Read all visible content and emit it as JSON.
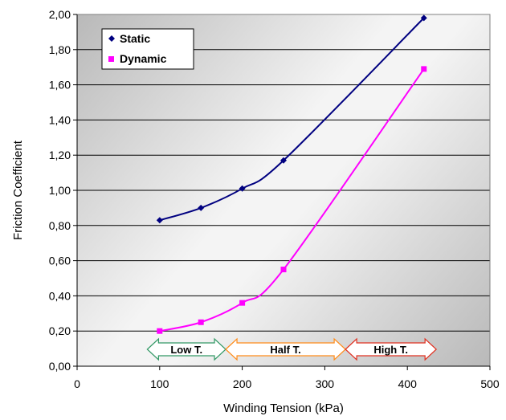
{
  "chart_data": {
    "type": "line",
    "xlabel": "Winding Tension (kPa)",
    "ylabel": "Friction Coefficient",
    "xlim": [
      0,
      500
    ],
    "ylim": [
      0,
      2.0
    ],
    "x_ticks": [
      "0",
      "100",
      "200",
      "300",
      "400",
      "500"
    ],
    "y_ticks": [
      "0,00",
      "0,20",
      "0,40",
      "0,60",
      "0,80",
      "1,00",
      "1,20",
      "1,40",
      "1,60",
      "1,80",
      "2,00"
    ],
    "grid": "horizontal",
    "legend_position": "top-left",
    "series": [
      {
        "name": "Static",
        "color": "#000080",
        "marker": "diamond",
        "x": [
          100,
          150,
          200,
          250,
          420
        ],
        "values": [
          0.83,
          0.9,
          1.01,
          1.17,
          1.98
        ]
      },
      {
        "name": "Dynamic",
        "color": "#ff00ff",
        "marker": "square",
        "x": [
          100,
          150,
          200,
          250,
          420
        ],
        "values": [
          0.2,
          0.25,
          0.36,
          0.55,
          1.69
        ]
      }
    ],
    "annotations": [
      {
        "label": "Low T.",
        "from": 85,
        "to": 180,
        "color": "#339966"
      },
      {
        "label": "Half T.",
        "from": 180,
        "to": 325,
        "color": "#ff8c1a"
      },
      {
        "label": "High T.",
        "from": 325,
        "to": 435,
        "color": "#e03020"
      }
    ]
  }
}
